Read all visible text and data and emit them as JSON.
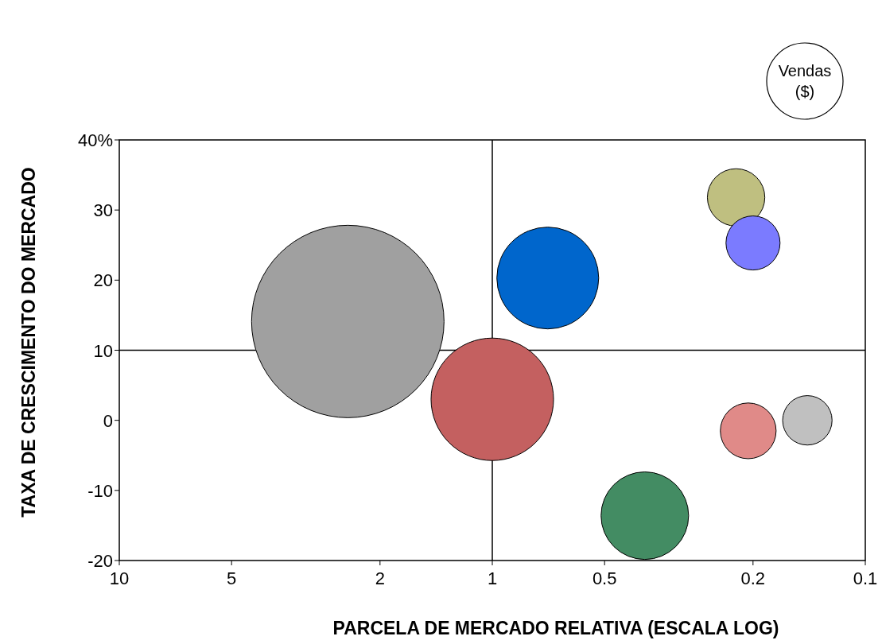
{
  "chart_data": {
    "type": "bubble",
    "xlabel": "PARCELA DE MERCADO RELATIVA (ESCALA LOG)",
    "ylabel": "TAXA DE CRESCIMENTO DO MERCADO",
    "legend_title": "Vendas ($)",
    "log": "x",
    "xlim": [
      10,
      0.1
    ],
    "xticks": [
      10,
      5,
      2,
      1,
      0.5,
      0.2,
      0.1
    ],
    "ylim": [
      -20,
      40
    ],
    "yticks": [
      -20,
      -10,
      0,
      10,
      20,
      30,
      {
        "value": 40,
        "label": "40%"
      }
    ],
    "grid": false,
    "ref_lines": [
      {
        "axis": "x",
        "value": 1,
        "color": "#000000"
      },
      {
        "axis": "y",
        "value": 10,
        "color": "#000000"
      }
    ],
    "series": [
      {
        "x": [
          2.44,
          1.0,
          0.71,
          0.39,
          0.222,
          0.2,
          0.206,
          0.143
        ],
        "values": [
          14.1,
          3.0,
          20.3,
          -13.6,
          31.8,
          25.3,
          -1.5,
          0.0
        ],
        "sizes": [
          1,
          0.405,
          0.28,
          0.207,
          0.089,
          0.079,
          0.084,
          0.066
        ],
        "colors": [
          "#a0a0a0",
          "#c46060",
          "#0066cc",
          "#438c63",
          "#bfbf80",
          "#7b7bff",
          "#e08a88",
          "#c0c0c0"
        ]
      }
    ]
  }
}
